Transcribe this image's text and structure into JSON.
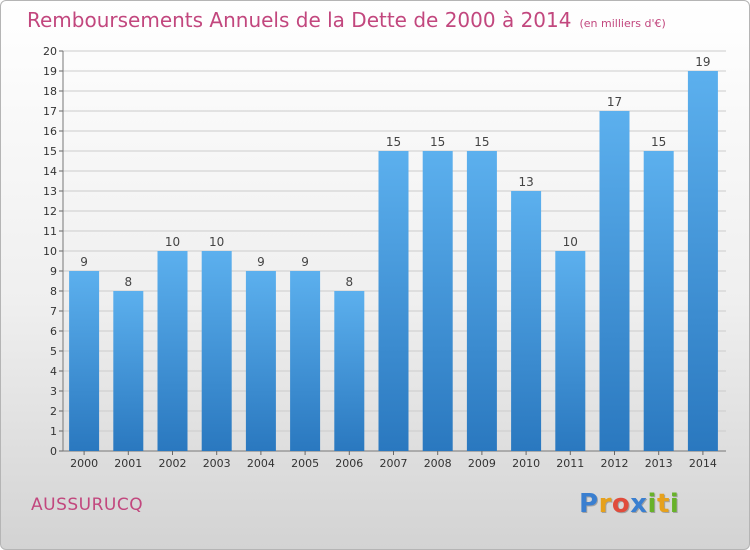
{
  "chart_data": {
    "type": "bar",
    "title": "Remboursements Annuels de la Dette de 2000 à 2014",
    "unit": "(en milliers d'€)",
    "categories": [
      "2000",
      "2001",
      "2002",
      "2003",
      "2004",
      "2005",
      "2006",
      "2007",
      "2008",
      "2009",
      "2010",
      "2011",
      "2012",
      "2013",
      "2014"
    ],
    "values": [
      9,
      8,
      10,
      10,
      9,
      9,
      8,
      15,
      15,
      15,
      13,
      10,
      17,
      15,
      19
    ],
    "ylim": [
      0,
      20
    ],
    "yticks": [
      0,
      1,
      2,
      3,
      4,
      5,
      6,
      7,
      8,
      9,
      10,
      11,
      12,
      13,
      14,
      15,
      16,
      17,
      18,
      19,
      20
    ],
    "grid": true,
    "bar_color": "#3f95dc"
  },
  "commune": "AUSSURUCQ",
  "brand": {
    "letters": [
      "P",
      "r",
      "o",
      "x",
      "i",
      "t",
      "i"
    ],
    "colors": [
      "#3a7fd0",
      "#e6a11c",
      "#e04c3c",
      "#3a7fd0",
      "#68b22a",
      "#e6a11c",
      "#68b22a"
    ]
  },
  "colors": {
    "title": "#c2477e",
    "grid": "#cccccc"
  }
}
